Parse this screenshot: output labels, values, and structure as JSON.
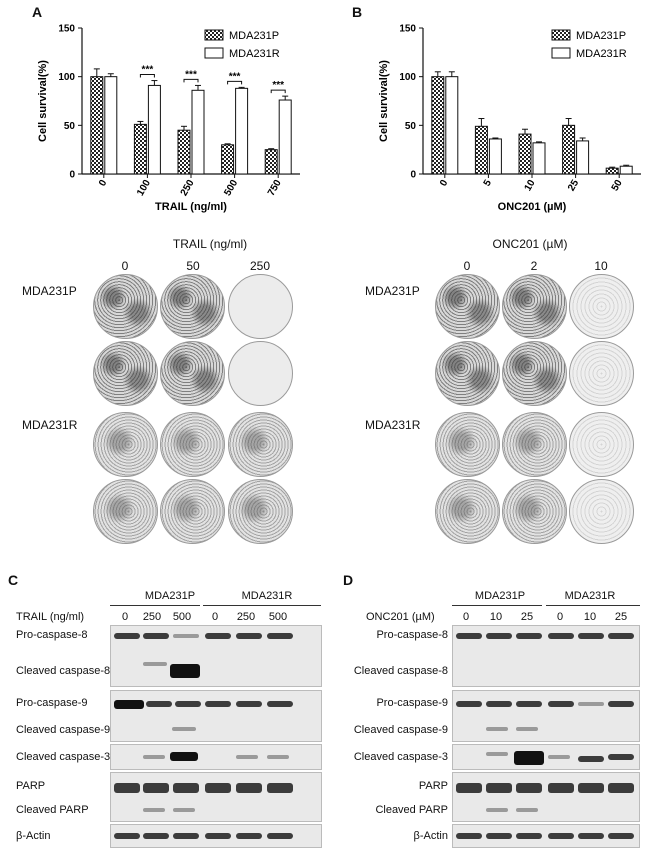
{
  "panels": {
    "A": "A",
    "B": "B",
    "C": "C",
    "D": "D"
  },
  "chart_data": [
    {
      "type": "bar",
      "panel": "A",
      "ylabel": "Cell survival(%)",
      "xlabel": "TRAIL (ng/ml)",
      "categories": [
        "0",
        "100",
        "250",
        "500",
        "750"
      ],
      "ylim": [
        0,
        150
      ],
      "yticks": [
        "0",
        "50",
        "100",
        "150"
      ],
      "series": [
        {
          "name": "MDA231P",
          "values": [
            100,
            51,
            45,
            30,
            25
          ],
          "errors": [
            8,
            3,
            4,
            1,
            1
          ]
        },
        {
          "name": "MDA231R",
          "values": [
            100,
            91,
            86,
            88,
            76
          ],
          "errors": [
            3,
            5,
            5,
            1,
            4
          ]
        }
      ],
      "significance": [
        "***",
        "***",
        "***",
        "***"
      ]
    },
    {
      "type": "bar",
      "panel": "B",
      "ylabel": "Cell survival(%)",
      "xlabel": "ONC201 (µM)",
      "categories": [
        "0",
        "5",
        "10",
        "25",
        "50"
      ],
      "ylim": [
        0,
        150
      ],
      "yticks": [
        "0",
        "50",
        "100",
        "150"
      ],
      "series": [
        {
          "name": "MDA231P",
          "values": [
            100,
            49,
            41,
            50,
            6
          ],
          "errors": [
            5,
            8,
            5,
            7,
            1
          ]
        },
        {
          "name": "MDA231R",
          "values": [
            100,
            36,
            32,
            34,
            8
          ],
          "errors": [
            5,
            1,
            1,
            3,
            1
          ]
        }
      ]
    }
  ],
  "colony": {
    "left": {
      "title": "TRAIL (ng/ml)",
      "doses": [
        "0",
        "50",
        "250"
      ],
      "rows": [
        "MDA231P",
        "MDA231R"
      ]
    },
    "right": {
      "title": "ONC201 (µM)",
      "doses": [
        "0",
        "2",
        "10"
      ],
      "rows": [
        "MDA231P",
        "MDA231R"
      ]
    }
  },
  "western_C": {
    "treatment_label": "TRAIL (ng/ml)",
    "groups": [
      "MDA231P",
      "MDA231R"
    ],
    "doses": [
      "0",
      "250",
      "500",
      "0",
      "250",
      "500"
    ],
    "labels": [
      "Pro-caspase-8",
      "Cleaved caspase-8",
      "Pro-caspase-9",
      "Cleaved caspase-9",
      "Cleaved caspase-3",
      "PARP",
      "Cleaved PARP",
      "β-Actin"
    ]
  },
  "western_D": {
    "treatment_label": "ONC201 (µM)",
    "groups": [
      "MDA231P",
      "MDA231R"
    ],
    "doses": [
      "0",
      "10",
      "25",
      "0",
      "10",
      "25"
    ],
    "labels": [
      "Pro-caspase-8",
      "Cleaved caspase-8",
      "Pro-caspase-9",
      "Cleaved caspase-9",
      "Cleaved caspase-3",
      "PARP",
      "Cleaved PARP",
      "β-Actin"
    ]
  }
}
